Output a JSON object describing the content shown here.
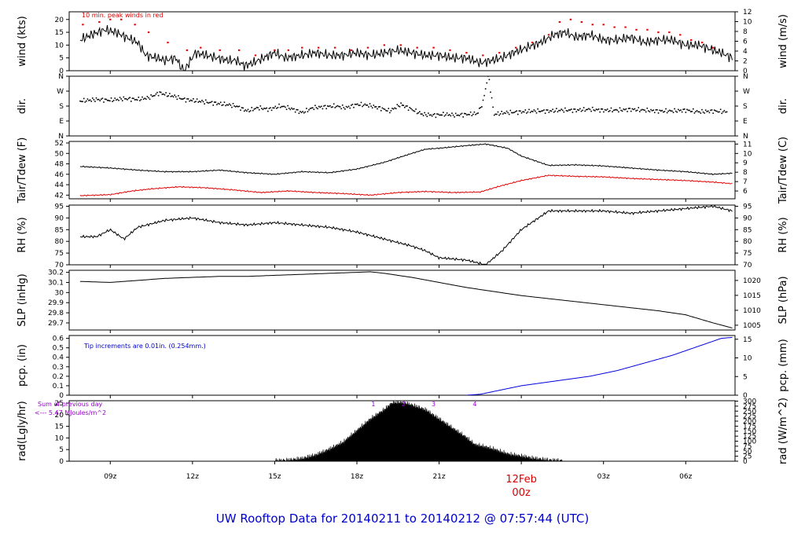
{
  "footer": "UW Rooftop Data for 20140211  to  20140212 @ 07:57:44  (UTC)",
  "colors": {
    "wind_peak": "#e00000",
    "tdew": "#e00000",
    "precip": "#0000dd",
    "precip_note": "#0000cc",
    "rad_note": "#9900cc",
    "date_label": "#dd0000",
    "footer": "#0000cc"
  },
  "chart_data": [
    {
      "id": "wind",
      "type": "line",
      "ylabel": "wind (kts)",
      "ylabel_right": "wind (m/s)",
      "ylim": [
        0,
        23
      ],
      "yticks": [
        0,
        5,
        10,
        15,
        20
      ],
      "ylim_right": [
        0,
        12
      ],
      "yticks_right": [
        0,
        2,
        4,
        6,
        8,
        10,
        12
      ],
      "annotation": "10 min. peak winds in red",
      "series": [
        {
          "kind": "line",
          "color": "#000000",
          "x": [
            7.9,
            8.3,
            8.8,
            9.2,
            9.6,
            10.0,
            10.3,
            10.7,
            11.0,
            11.4,
            11.6,
            11.7,
            12.1,
            12.5,
            12.9,
            13.3,
            13.6,
            13.9,
            14.2,
            14.6,
            15.0,
            15.4,
            16.0,
            16.5,
            17.0,
            17.5,
            18.0,
            18.5,
            19.0,
            19.5,
            20.0,
            20.5,
            21.0,
            21.5,
            22.0,
            22.5,
            22.9,
            23.3,
            23.7,
            24.2,
            24.7,
            25.2,
            25.6,
            26.0,
            26.5,
            27.0,
            27.5,
            28.0,
            28.5,
            29.0,
            29.5,
            30.0,
            30.5,
            31.0,
            31.3,
            31.7
          ],
          "y": [
            12,
            14,
            16,
            15,
            13,
            11,
            6,
            5,
            4,
            5,
            1,
            0,
            7,
            6,
            5,
            4,
            4,
            2,
            3,
            5,
            7,
            5,
            6,
            7,
            6,
            6,
            7,
            6,
            7,
            8,
            7,
            6,
            6,
            5,
            5,
            3,
            4,
            5,
            7,
            9,
            11,
            14,
            15,
            13,
            14,
            12,
            12,
            13,
            11,
            12,
            12,
            10,
            10,
            8,
            7,
            5
          ]
        },
        {
          "kind": "points",
          "color": "#e00000",
          "x": [
            8.0,
            8.6,
            9.0,
            9.4,
            9.9,
            10.4,
            11.1,
            11.8,
            12.3,
            13.0,
            13.7,
            14.3,
            15.0,
            15.5,
            16.0,
            16.6,
            17.2,
            17.8,
            18.4,
            19.0,
            19.6,
            20.2,
            20.8,
            21.4,
            22.0,
            22.6,
            23.2,
            23.8,
            24.4,
            25.0,
            25.4,
            25.8,
            26.2,
            26.6,
            27.0,
            27.4,
            27.8,
            28.2,
            28.6,
            29.0,
            29.4,
            29.8,
            30.2,
            30.6,
            31.0
          ],
          "y": [
            18,
            19,
            20,
            20,
            18,
            15,
            11,
            8,
            9,
            8,
            8,
            6,
            8,
            8,
            9,
            9,
            9,
            8,
            9,
            10,
            10,
            9,
            9,
            8,
            7,
            6,
            7,
            9,
            11,
            14,
            19,
            20,
            19,
            18,
            18,
            17,
            17,
            16,
            16,
            15,
            15,
            14,
            12,
            11,
            9
          ]
        }
      ]
    },
    {
      "id": "dir",
      "type": "scatter",
      "ylabel": "dir.",
      "ylabel_right": "dir.",
      "ylim": [
        0,
        360
      ],
      "ytick_values": [
        0,
        90,
        180,
        270,
        360
      ],
      "ytick_labels": [
        "N",
        "E",
        "S",
        "W",
        "N"
      ],
      "series": [
        {
          "kind": "points",
          "color": "#000000",
          "x": [
            7.9,
            8.5,
            9.0,
            9.5,
            10.0,
            10.4,
            10.8,
            11.0,
            11.3,
            11.7,
            12.2,
            12.7,
            13.2,
            13.6,
            14.0,
            14.4,
            14.8,
            15.2,
            15.6,
            16.0,
            16.4,
            16.8,
            17.2,
            17.6,
            18.0,
            18.4,
            18.8,
            19.2,
            19.6,
            20.0,
            20.4,
            20.8,
            21.2,
            21.6,
            22.0,
            22.4,
            22.6,
            22.7,
            22.8,
            23.0,
            23.4,
            24.0,
            24.5,
            25.0,
            25.5,
            26.0,
            26.5,
            27.0,
            27.5,
            28.0,
            28.5,
            29.0,
            29.5,
            30.0,
            30.5,
            31.0,
            31.5
          ],
          "y": [
            210,
            220,
            215,
            225,
            220,
            230,
            260,
            250,
            240,
            220,
            210,
            200,
            190,
            180,
            150,
            170,
            160,
            180,
            165,
            140,
            170,
            175,
            180,
            170,
            190,
            185,
            170,
            150,
            190,
            160,
            130,
            125,
            130,
            125,
            130,
            135,
            200,
            290,
            370,
            130,
            140,
            145,
            150,
            150,
            155,
            155,
            160,
            155,
            155,
            160,
            155,
            150,
            150,
            155,
            145,
            150,
            145
          ]
        }
      ]
    },
    {
      "id": "temp",
      "type": "line",
      "ylabel": "Tair/Tdew (F)",
      "ylabel_right": "Tair/Tdew (C)",
      "ylim": [
        41.3,
        52.3
      ],
      "yticks": [
        42,
        44,
        46,
        48,
        50,
        52
      ],
      "ylim_right": [
        5.17,
        11.28
      ],
      "yticks_right": [
        6,
        7,
        8,
        9,
        10,
        11
      ],
      "series": [
        {
          "name": "Tair",
          "kind": "line",
          "color": "#000000",
          "x": [
            7.9,
            9.0,
            10.0,
            11.0,
            12.0,
            13.0,
            14.0,
            15.0,
            16.0,
            17.0,
            18.0,
            19.0,
            20.0,
            20.5,
            21.0,
            22.0,
            22.7,
            23.5,
            24.0,
            25.0,
            26.0,
            27.0,
            28.0,
            29.0,
            30.0,
            31.0,
            31.7
          ],
          "y": [
            47.5,
            47.2,
            46.8,
            46.5,
            46.5,
            46.8,
            46.3,
            46.0,
            46.5,
            46.3,
            47.0,
            48.3,
            50.0,
            50.8,
            51.0,
            51.5,
            51.8,
            51.0,
            49.5,
            47.7,
            47.8,
            47.6,
            47.2,
            46.8,
            46.5,
            46.0,
            46.2
          ]
        },
        {
          "name": "Tdew",
          "kind": "line",
          "color": "#e00000",
          "x": [
            7.9,
            8.5,
            9.0,
            9.8,
            10.5,
            11.5,
            12.5,
            13.5,
            14.5,
            15.5,
            16.5,
            17.5,
            18.5,
            19.5,
            20.5,
            21.5,
            22.5,
            23.2,
            24.0,
            25.0,
            26.0,
            27.0,
            28.0,
            29.0,
            30.0,
            31.0,
            31.7
          ],
          "y": [
            41.9,
            42.0,
            42.1,
            42.8,
            43.2,
            43.6,
            43.4,
            43.0,
            42.5,
            42.8,
            42.5,
            42.3,
            42.0,
            42.5,
            42.7,
            42.5,
            42.6,
            43.7,
            44.8,
            45.8,
            45.6,
            45.5,
            45.2,
            45.0,
            44.8,
            44.5,
            44.2
          ]
        }
      ]
    },
    {
      "id": "rh",
      "type": "line",
      "ylabel": "RH (%)",
      "ylabel_right": "RH (%)",
      "ylim": [
        70,
        95.5
      ],
      "yticks": [
        70,
        75,
        80,
        85,
        90,
        95
      ],
      "yticks_right": [
        70,
        75,
        80,
        85,
        90,
        95
      ],
      "series": [
        {
          "kind": "line",
          "color": "#000000",
          "x": [
            7.9,
            8.5,
            9.0,
            9.5,
            10.0,
            11.0,
            12.0,
            13.0,
            14.0,
            15.0,
            16.0,
            17.0,
            18.0,
            19.0,
            20.0,
            20.5,
            21.0,
            22.0,
            22.7,
            23.3,
            24.0,
            25.0,
            26.0,
            27.0,
            28.0,
            29.0,
            30.0,
            31.0,
            31.7
          ],
          "y": [
            82,
            82,
            85,
            81,
            86,
            89,
            90,
            88,
            87,
            88,
            87,
            86,
            84,
            81,
            78,
            76,
            73,
            72,
            70,
            76,
            85,
            93,
            93,
            93,
            92,
            93,
            94,
            95,
            93
          ]
        }
      ]
    },
    {
      "id": "slp",
      "type": "line",
      "ylabel": "SLP (inHg)",
      "ylabel_right": "SLP (hPa)",
      "ylim": [
        29.63,
        30.22
      ],
      "yticks": [
        29.7,
        29.8,
        29.9,
        30.0,
        30.1,
        30.2
      ],
      "ylim_right": [
        1003.4,
        1023.4
      ],
      "yticks_right": [
        1005,
        1010,
        1015,
        1020
      ],
      "series": [
        {
          "kind": "line",
          "color": "#000000",
          "x": [
            7.9,
            9.0,
            10.0,
            11.0,
            12.0,
            13.0,
            14.0,
            15.0,
            16.0,
            17.0,
            18.0,
            18.5,
            19.0,
            20.0,
            21.0,
            22.0,
            23.0,
            24.0,
            25.0,
            26.0,
            27.0,
            28.0,
            29.0,
            30.0,
            31.0,
            31.7
          ],
          "y": [
            30.11,
            30.1,
            30.12,
            30.14,
            30.15,
            30.16,
            30.16,
            30.17,
            30.18,
            30.19,
            30.2,
            30.205,
            30.19,
            30.15,
            30.1,
            30.05,
            30.01,
            29.97,
            29.94,
            29.91,
            29.88,
            29.85,
            29.82,
            29.78,
            29.7,
            29.65
          ]
        }
      ]
    },
    {
      "id": "pcp",
      "type": "area",
      "ylabel": "pcp. (in)",
      "ylabel_right": "pcp. (mm)",
      "ylim": [
        0,
        0.63
      ],
      "yticks": [
        0.0,
        0.1,
        0.2,
        0.3,
        0.4,
        0.5,
        0.6
      ],
      "ylim_right": [
        0,
        16
      ],
      "yticks_right": [
        0,
        5,
        10,
        15
      ],
      "annotation": "Tip increments are 0.01in. (0.254mm.)",
      "series": [
        {
          "kind": "line",
          "color": "#0000dd",
          "x": [
            22.0,
            22.5,
            23.0,
            23.5,
            24.0,
            24.5,
            25.0,
            25.5,
            26.0,
            26.5,
            27.0,
            27.5,
            28.0,
            28.5,
            29.0,
            29.5,
            30.0,
            30.5,
            31.0,
            31.3,
            31.7
          ],
          "y": [
            0.0,
            0.01,
            0.04,
            0.07,
            0.1,
            0.12,
            0.14,
            0.16,
            0.18,
            0.2,
            0.23,
            0.26,
            0.3,
            0.34,
            0.38,
            0.42,
            0.47,
            0.52,
            0.57,
            0.6,
            0.61
          ]
        }
      ]
    },
    {
      "id": "rad",
      "type": "area",
      "ylabel": "rad(Lgly/hr)",
      "ylabel_right": "rad (W/m^2)",
      "ylim": [
        0,
        26
      ],
      "yticks": [
        0,
        5,
        10,
        15,
        20,
        25
      ],
      "ylim_right": [
        0,
        302
      ],
      "yticks_right": [
        0,
        25,
        50,
        75,
        100,
        125,
        150,
        175,
        200,
        225,
        250,
        275,
        300
      ],
      "annotation_line1": "Sum of previous day",
      "annotation_line2": "<--- 5.47 MJoules/m^2",
      "markers": [
        "1",
        "2",
        "3",
        "4"
      ],
      "marker_x": [
        18.6,
        19.7,
        20.8,
        22.3
      ],
      "series": [
        {
          "kind": "area",
          "color": "#000000",
          "x": [
            15.0,
            15.5,
            16.0,
            16.5,
            17.0,
            17.5,
            18.0,
            18.5,
            19.0,
            19.3,
            19.7,
            20.0,
            20.5,
            21.0,
            21.5,
            22.0,
            22.3,
            22.7,
            23.0,
            23.5,
            24.0,
            24.5,
            25.0,
            25.5
          ],
          "y": [
            0,
            0.3,
            1,
            2.5,
            5,
            8,
            13,
            18,
            22,
            25,
            25,
            24,
            22,
            18,
            14,
            10,
            7,
            6,
            5,
            3,
            2,
            1,
            0.3,
            0
          ]
        }
      ]
    }
  ],
  "x_axis": {
    "xlim": [
      7.5,
      31.8
    ],
    "ticks": [
      {
        "x": 9,
        "label": "09z"
      },
      {
        "x": 12,
        "label": "12z"
      },
      {
        "x": 15,
        "label": "15z"
      },
      {
        "x": 18,
        "label": "18z"
      },
      {
        "x": 21,
        "label": "21z"
      },
      {
        "x": 27,
        "label": "03z"
      },
      {
        "x": 30,
        "label": "06z"
      }
    ],
    "date_x": 24,
    "date_label": "12Feb",
    "date_hour_label": "00z"
  }
}
